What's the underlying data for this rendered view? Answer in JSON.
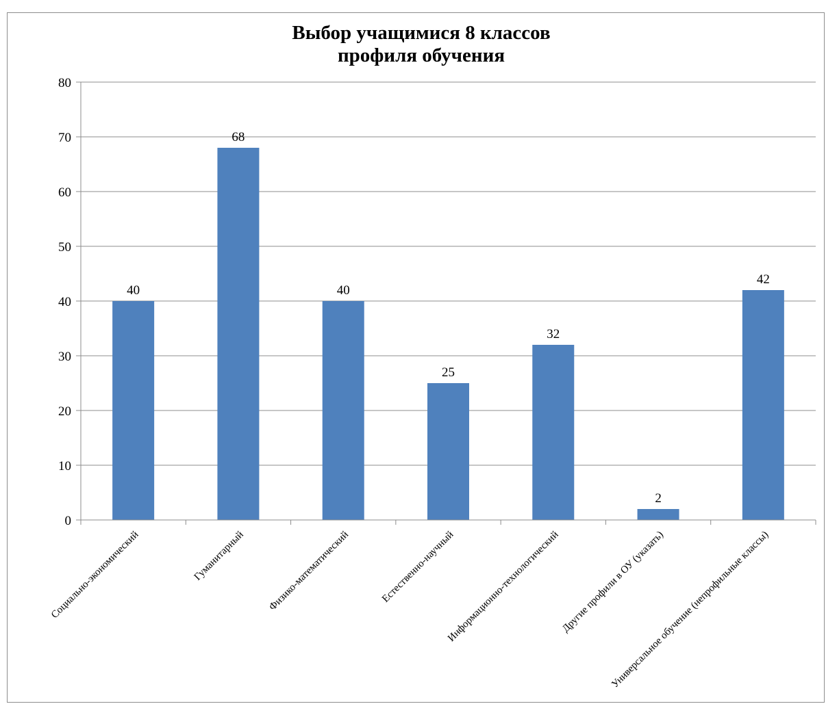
{
  "chart_data": {
    "type": "bar",
    "title": [
      "Выбор учащимися 8 классов",
      "профиля обучения"
    ],
    "categories": [
      "Социально-экономический",
      "Гуманитарный",
      "Физико-математический",
      "Естественно-научный",
      "Информационно-технологический",
      "Другие профили в ОУ (указать)",
      "Универсальное обучение (непрофильные классы)"
    ],
    "values": [
      40,
      68,
      40,
      25,
      32,
      2,
      42
    ],
    "ylim": [
      0,
      80
    ],
    "yticks": [
      0,
      10,
      20,
      30,
      40,
      50,
      60,
      70,
      80
    ],
    "data_labels": true,
    "grid": true,
    "legend": "none",
    "bar_color": "#4f81bd",
    "grid_color": "#8c8c8c"
  }
}
